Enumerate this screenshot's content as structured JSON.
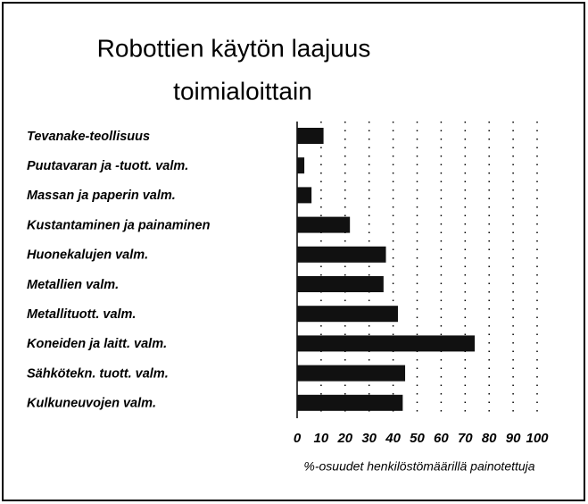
{
  "chart_data": {
    "type": "bar",
    "orientation": "horizontal",
    "title": [
      "Robottien käytön laajuus",
      "toimialoittain"
    ],
    "categories": [
      "Tevanake-teollisuus",
      "Puutavaran ja -tuott. valm.",
      "Massan ja paperin valm.",
      "Kustantaminen ja painaminen",
      "Huonekalujen valm.",
      "Metallien valm.",
      "Metallituott. valm.",
      "Koneiden ja laitt. valm.",
      "Sähkötekn. tuott. valm.",
      "Kulkuneuvojen valm."
    ],
    "values": [
      11,
      3,
      6,
      22,
      37,
      36,
      42,
      74,
      45,
      44
    ],
    "color": "#111111",
    "xlabel": "%-osuudet henkilöstömäärillä painotettuja",
    "xlim": [
      0,
      100
    ],
    "xticks": [
      0,
      10,
      20,
      30,
      40,
      50,
      60,
      70,
      80,
      90,
      100
    ],
    "grid": true
  }
}
